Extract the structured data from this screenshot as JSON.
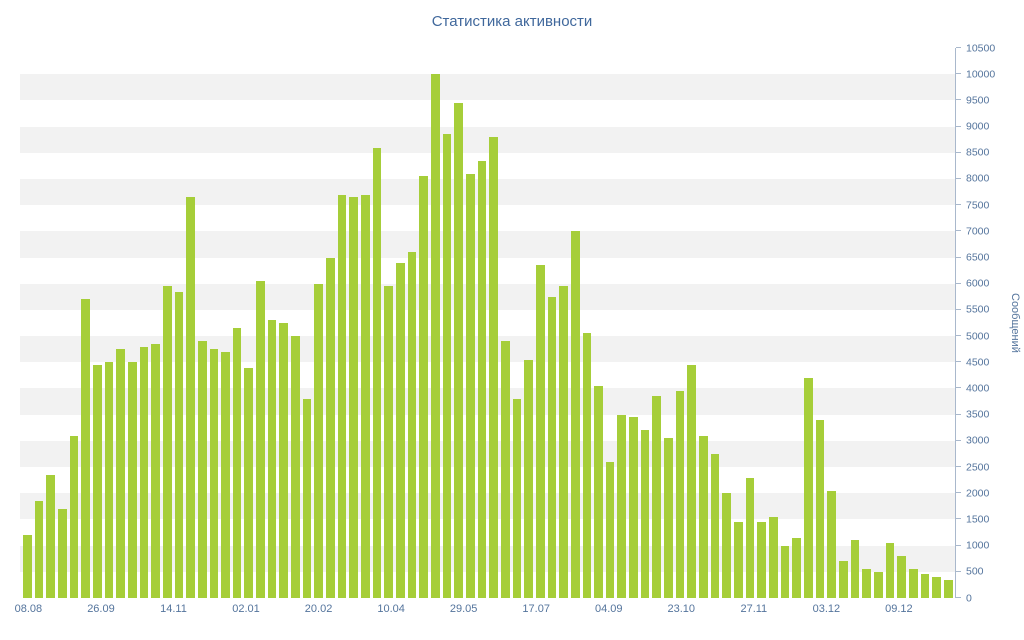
{
  "chart_data": {
    "type": "bar",
    "title": "Статистика активности",
    "ylabel": "Сообщений",
    "xlabel": "",
    "ylim": [
      0,
      10500
    ],
    "y_tick_step": 500,
    "grid": "striped-bands",
    "legend": "none",
    "y_axis_position": "right",
    "x_tick_labels": [
      "08.08",
      "26.09",
      "14.11",
      "02.01",
      "20.02",
      "10.04",
      "29.05",
      "17.07",
      "04.09",
      "23.10",
      "27.11",
      "03.12",
      "09.12"
    ],
    "values": [
      1200,
      1850,
      2350,
      1700,
      3100,
      5700,
      4450,
      4500,
      4750,
      4500,
      4800,
      4850,
      5950,
      5850,
      7650,
      4900,
      4750,
      4700,
      5150,
      4400,
      6050,
      5300,
      5250,
      5000,
      3800,
      6000,
      6500,
      7700,
      7650,
      7700,
      8600,
      5950,
      6400,
      6600,
      8050,
      10000,
      8850,
      9450,
      8100,
      8350,
      8800,
      4900,
      3800,
      4550,
      6350,
      5750,
      5950,
      7000,
      5050,
      4050,
      2600,
      3500,
      3450,
      3200,
      3850,
      3050,
      3950,
      4450,
      3100,
      2750,
      2000,
      1450,
      2300,
      1450,
      1550,
      1000,
      1150,
      4200,
      3400,
      2050,
      700,
      1100,
      550,
      500,
      1050,
      800,
      550,
      450,
      400,
      350
    ],
    "bar_color": "#a6ce39",
    "stripe_color": "#f2f2f2",
    "title_color": "#40689c",
    "axis_text_color": "#54749c",
    "axis_line_color": "#a9b8cc"
  }
}
